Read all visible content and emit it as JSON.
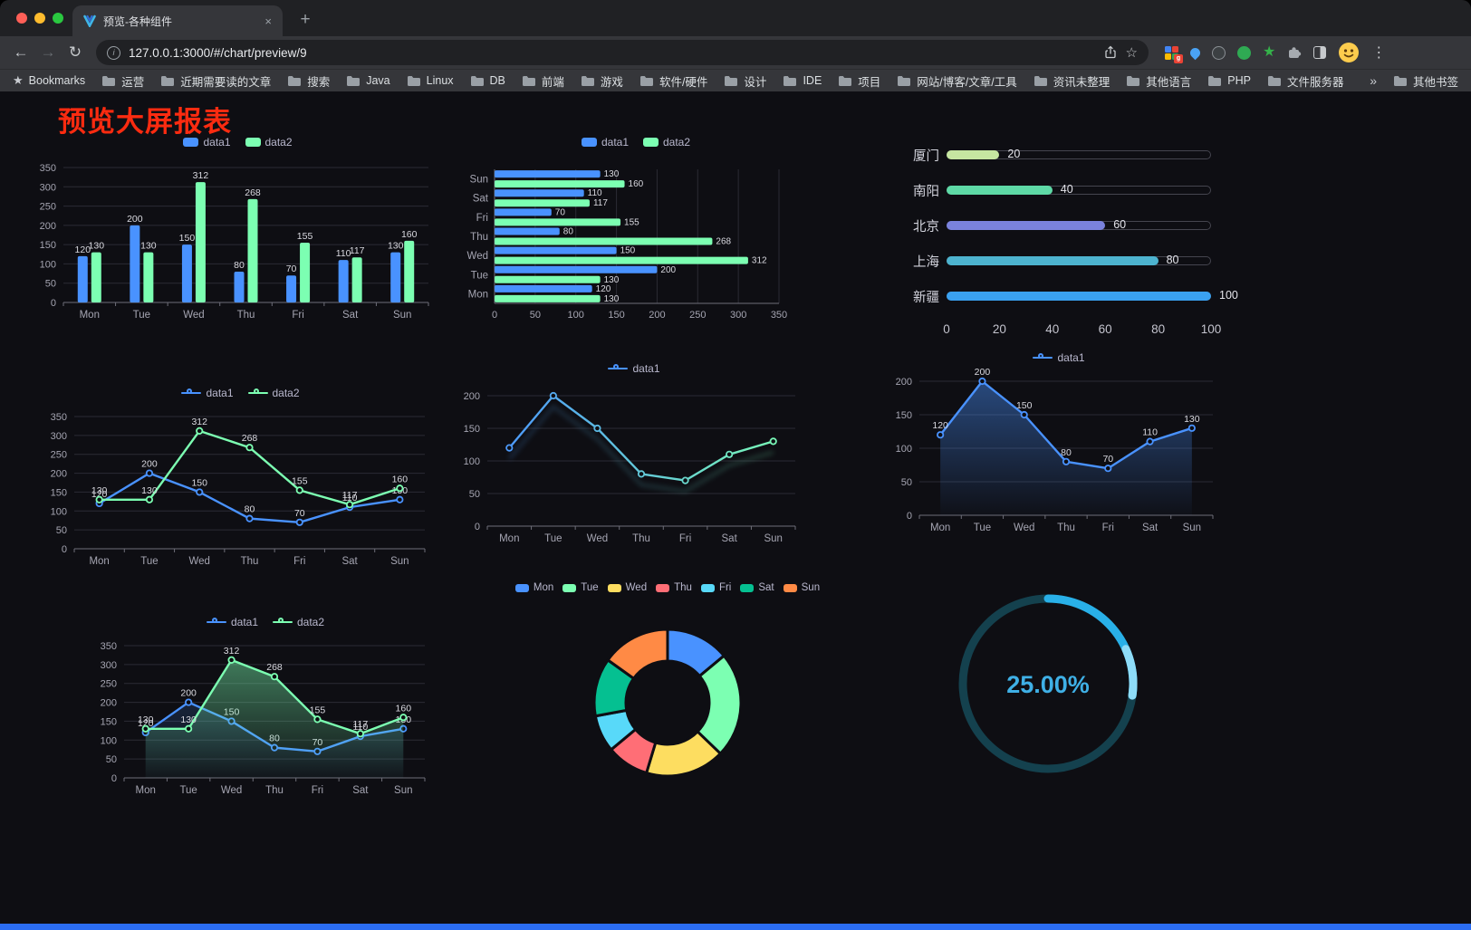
{
  "browser": {
    "tab_title": "预览-各种组件",
    "url": "127.0.0.1:3000/#/chart/preview/9",
    "bookmarks_bar": {
      "label": "Bookmarks",
      "items": [
        "运营",
        "近期需要读的文章",
        "搜索",
        "Java",
        "Linux",
        "DB",
        "前端",
        "游戏",
        "软件/硬件",
        "设计",
        "IDE",
        "项目",
        "网站/博客/文章/工具",
        "资讯未整理",
        "其他语言",
        "PHP",
        "文件服务器"
      ],
      "overflow": "»",
      "other": "其他书签"
    }
  },
  "page": {
    "title": "预览大屏报表"
  },
  "charts": {
    "categories": [
      "Mon",
      "Tue",
      "Wed",
      "Thu",
      "Fri",
      "Sat",
      "Sun"
    ],
    "series": {
      "data1": {
        "name": "data1",
        "color": "#4992ff",
        "values": [
          120,
          200,
          150,
          80,
          70,
          110,
          130
        ]
      },
      "data2": {
        "name": "data2",
        "color": "#7cffb2",
        "values": [
          130,
          130,
          312,
          268,
          155,
          117,
          160
        ]
      }
    },
    "bar_vertical": {
      "type": "bar",
      "legend": [
        "data1",
        "data2"
      ],
      "ymax": 350,
      "ystep": 50
    },
    "bar_horizontal": {
      "type": "bar-horizontal",
      "legend": [
        "data1",
        "data2"
      ],
      "xmax": 350,
      "xstep": 50
    },
    "progress": {
      "type": "progress",
      "max": 100,
      "axis": [
        0,
        20,
        40,
        60,
        80,
        100
      ],
      "rows": [
        {
          "label": "厦门",
          "value": 20,
          "color": "#c6e6a1"
        },
        {
          "label": "南阳",
          "value": 40,
          "color": "#5ed9a6"
        },
        {
          "label": "北京",
          "value": 60,
          "color": "#7a82dd"
        },
        {
          "label": "上海",
          "value": 80,
          "color": "#4db3cf"
        },
        {
          "label": "新疆",
          "value": 100,
          "color": "#3aa1f1"
        }
      ]
    },
    "line_two": {
      "type": "line",
      "legend": [
        "data1",
        "data2"
      ],
      "ymax": 350,
      "ystep": 50,
      "labels": true
    },
    "line_gradient": {
      "type": "line",
      "legend": [
        "data1"
      ],
      "ymax": 200,
      "ystep": 50,
      "gradient": [
        "#4992ff",
        "#7cffb2"
      ]
    },
    "area_single": {
      "type": "area",
      "legend": [
        "data1"
      ],
      "ymax": 200,
      "ystep": 50,
      "labels": true,
      "area_color": "#4992ff"
    },
    "area_two": {
      "type": "area",
      "legend": [
        "data1",
        "data2"
      ],
      "ymax": 350,
      "ystep": 50,
      "labels": true,
      "area_colors": [
        "#4992ff",
        "#7cffb2"
      ]
    },
    "pie": {
      "type": "pie",
      "legend": [
        "Mon",
        "Tue",
        "Wed",
        "Thu",
        "Fri",
        "Sat",
        "Sun"
      ],
      "values": [
        120,
        200,
        150,
        80,
        70,
        110,
        130
      ],
      "colors": [
        "#4992ff",
        "#7cffb2",
        "#fddd60",
        "#ff6e76",
        "#58d9f9",
        "#05c091",
        "#ff8a45"
      ]
    },
    "gauge": {
      "type": "gauge",
      "value": 25,
      "display": "25.00%",
      "color": "#29b0e8",
      "cap_color": "#8edcf8",
      "track": "#14414e",
      "text_color": "#3fb0e6"
    }
  }
}
